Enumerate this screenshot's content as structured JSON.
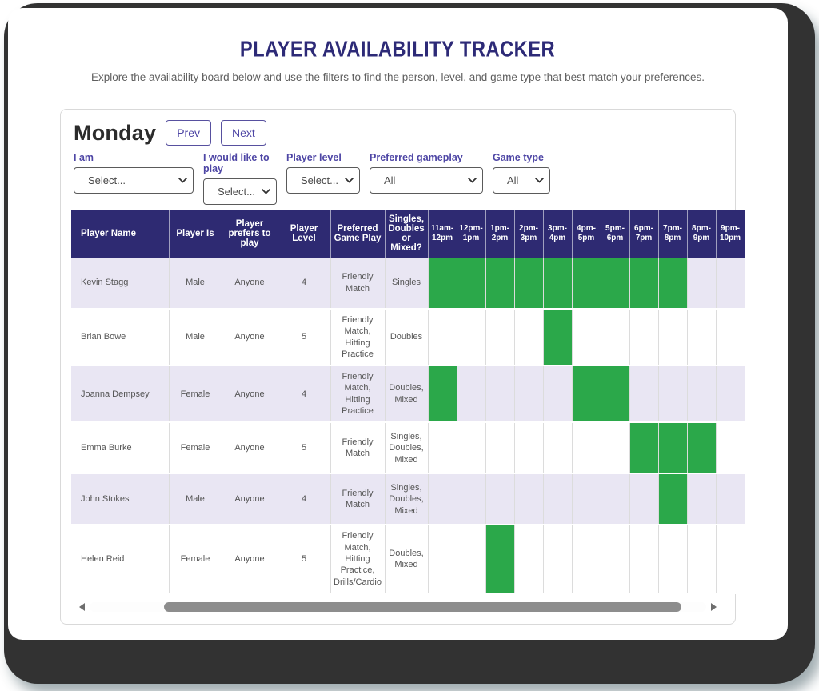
{
  "page": {
    "title": "PLAYER AVAILABILITY TRACKER",
    "subtitle": "Explore the availability board below and use the filters to find the person, level, and game type that best match your preferences."
  },
  "board": {
    "day": "Monday",
    "prev_label": "Prev",
    "next_label": "Next",
    "filters": [
      {
        "label": "I am",
        "value": "Select..."
      },
      {
        "label": "I would like to play",
        "value": "Select..."
      },
      {
        "label": "Player level",
        "value": "Select..."
      },
      {
        "label": "Preferred gameplay",
        "value": "All"
      },
      {
        "label": "Game type",
        "value": "All"
      }
    ]
  },
  "table": {
    "info_headers": [
      "Player Name",
      "Player Is",
      "Player prefers to play",
      "Player Level",
      "Preferred Game Play",
      "Singles, Doubles or Mixed?"
    ],
    "time_headers": [
      "11am-12pm",
      "12pm-1pm",
      "1pm-2pm",
      "2pm-3pm",
      "3pm-4pm",
      "4pm-5pm",
      "5pm-6pm",
      "6pm-7pm",
      "7pm-8pm",
      "8pm-9pm",
      "9pm-10pm"
    ],
    "rows": [
      {
        "name": "Kevin Stagg",
        "is": "Male",
        "prefers": "Anyone",
        "level": "4",
        "gameplay": "Friendly Match",
        "sdm": "Singles",
        "slots": [
          1,
          1,
          1,
          1,
          1,
          1,
          1,
          1,
          1,
          0,
          0
        ]
      },
      {
        "name": "Brian Bowe",
        "is": "Male",
        "prefers": "Anyone",
        "level": "5",
        "gameplay": "Friendly Match, Hitting Practice",
        "sdm": "Doubles",
        "slots": [
          0,
          0,
          0,
          0,
          1,
          0,
          0,
          0,
          0,
          0,
          0
        ]
      },
      {
        "name": "Joanna Dempsey",
        "is": "Female",
        "prefers": "Anyone",
        "level": "4",
        "gameplay": "Friendly Match, Hitting Practice",
        "sdm": "Doubles, Mixed",
        "slots": [
          1,
          0,
          0,
          0,
          0,
          1,
          1,
          0,
          0,
          0,
          0
        ]
      },
      {
        "name": "Emma Burke",
        "is": "Female",
        "prefers": "Anyone",
        "level": "5",
        "gameplay": "Friendly Match",
        "sdm": "Singles, Doubles, Mixed",
        "slots": [
          0,
          0,
          0,
          0,
          0,
          0,
          0,
          1,
          1,
          1,
          0
        ]
      },
      {
        "name": "John Stokes",
        "is": "Male",
        "prefers": "Anyone",
        "level": "4",
        "gameplay": "Friendly Match",
        "sdm": "Singles, Doubles, Mixed",
        "slots": [
          0,
          0,
          0,
          0,
          0,
          0,
          0,
          0,
          1,
          0,
          0
        ]
      },
      {
        "name": "Helen Reid",
        "is": "Female",
        "prefers": "Anyone",
        "level": "5",
        "gameplay": "Friendly Match, Hitting Practice, Drills/Cardio",
        "sdm": "Doubles, Mixed",
        "slots": [
          0,
          0,
          1,
          0,
          0,
          0,
          0,
          0,
          0,
          0,
          0
        ]
      }
    ]
  },
  "colors": {
    "title_indigo": "#2d2a77",
    "header_navy": "#2e2a72",
    "label_purple": "#4e46a5",
    "available_green": "#2ba84a",
    "row_lavender": "#e9e6f3"
  }
}
